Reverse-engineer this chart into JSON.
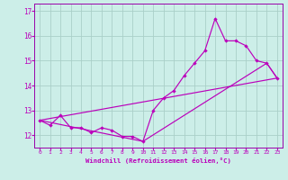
{
  "xlabel": "Windchill (Refroidissement éolien,°C)",
  "bg_color": "#cceee8",
  "grid_color": "#aacfc8",
  "line_color": "#bb00bb",
  "spine_color": "#9900aa",
  "x_ticks": [
    0,
    1,
    2,
    3,
    4,
    5,
    6,
    7,
    8,
    9,
    10,
    11,
    12,
    13,
    14,
    15,
    16,
    17,
    18,
    19,
    20,
    21,
    22,
    23
  ],
  "y_ticks": [
    12,
    13,
    14,
    15,
    16,
    17
  ],
  "ylim": [
    11.5,
    17.3
  ],
  "xlim": [
    -0.5,
    23.5
  ],
  "series_main": {
    "x": [
      0,
      1,
      2,
      3,
      4,
      5,
      6,
      7,
      8,
      9,
      10,
      11,
      12,
      13,
      14,
      15,
      16,
      17,
      18,
      19,
      20,
      21,
      22,
      23
    ],
    "y": [
      12.6,
      12.4,
      12.8,
      12.3,
      12.3,
      12.1,
      12.3,
      12.2,
      11.95,
      11.95,
      11.75,
      13.0,
      13.5,
      13.8,
      14.4,
      14.9,
      15.4,
      16.7,
      15.8,
      15.8,
      15.6,
      15.0,
      14.9,
      14.3
    ]
  },
  "series_lower": {
    "x": [
      0,
      10,
      22,
      23
    ],
    "y": [
      12.6,
      11.75,
      14.9,
      14.3
    ]
  },
  "series_upper": {
    "x": [
      0,
      23
    ],
    "y": [
      12.6,
      14.3
    ]
  }
}
